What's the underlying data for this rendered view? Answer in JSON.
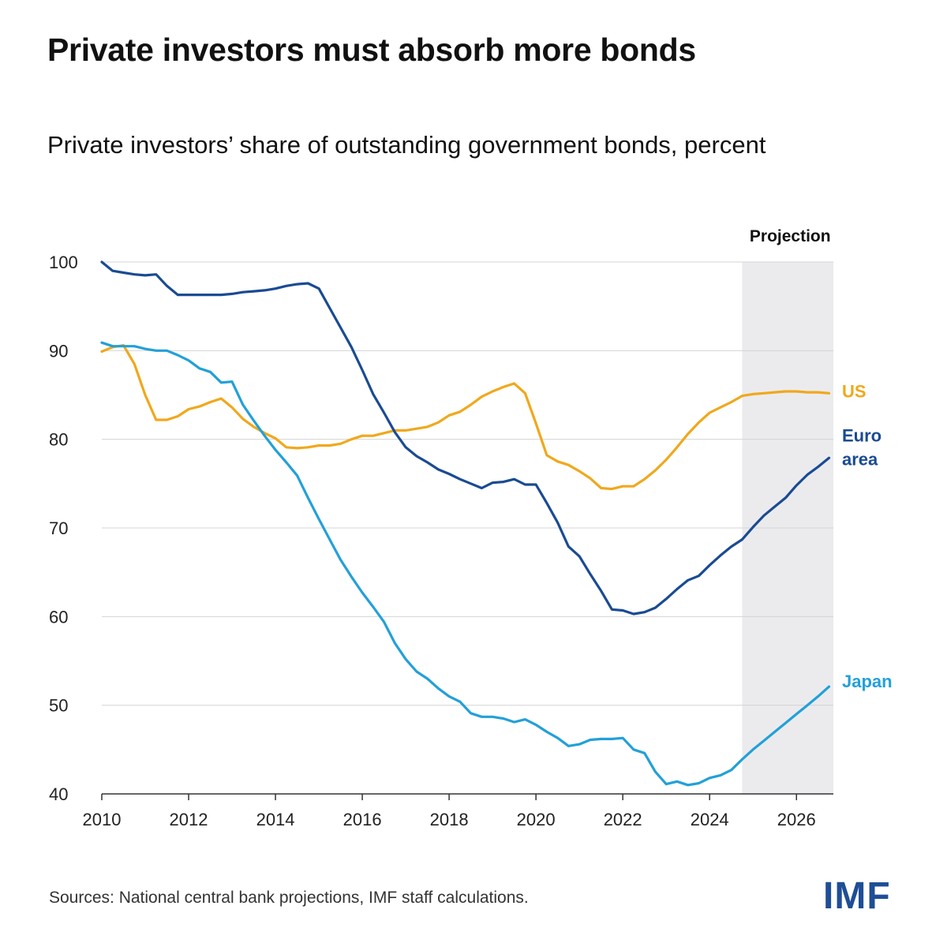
{
  "chart_data": {
    "type": "line",
    "title": "Private investors must absorb more bonds",
    "subtitle": "Private investors’ share of outstanding government bonds, percent",
    "xlabel": "",
    "ylabel": "",
    "xlim": [
      2010,
      2026.85
    ],
    "ylim": [
      40,
      100
    ],
    "y_ticks": [
      40,
      50,
      60,
      70,
      80,
      90,
      100
    ],
    "x_ticks": [
      2010,
      2012,
      2014,
      2016,
      2018,
      2020,
      2022,
      2024,
      2026
    ],
    "grid": "horizontal",
    "projection": {
      "label": "Projection",
      "start": 2024.75,
      "end": 2026.85
    },
    "series": [
      {
        "name": "US",
        "label_lines": [
          "US"
        ],
        "color": "#f0a81c",
        "points": [
          [
            2010.0,
            89.9
          ],
          [
            2010.25,
            90.4
          ],
          [
            2010.5,
            90.6
          ],
          [
            2010.75,
            88.5
          ],
          [
            2011.0,
            85.0
          ],
          [
            2011.25,
            82.2
          ],
          [
            2011.5,
            82.2
          ],
          [
            2011.75,
            82.6
          ],
          [
            2012.0,
            83.4
          ],
          [
            2012.25,
            83.7
          ],
          [
            2012.5,
            84.2
          ],
          [
            2012.75,
            84.6
          ],
          [
            2013.0,
            83.6
          ],
          [
            2013.25,
            82.3
          ],
          [
            2013.5,
            81.4
          ],
          [
            2013.75,
            80.7
          ],
          [
            2014.0,
            80.1
          ],
          [
            2014.25,
            79.1
          ],
          [
            2014.5,
            79.0
          ],
          [
            2014.75,
            79.1
          ],
          [
            2015.0,
            79.3
          ],
          [
            2015.25,
            79.3
          ],
          [
            2015.5,
            79.5
          ],
          [
            2015.75,
            80.0
          ],
          [
            2016.0,
            80.4
          ],
          [
            2016.25,
            80.4
          ],
          [
            2016.5,
            80.7
          ],
          [
            2016.75,
            81.0
          ],
          [
            2017.0,
            81.0
          ],
          [
            2017.25,
            81.2
          ],
          [
            2017.5,
            81.4
          ],
          [
            2017.75,
            81.9
          ],
          [
            2018.0,
            82.7
          ],
          [
            2018.25,
            83.1
          ],
          [
            2018.5,
            83.9
          ],
          [
            2018.75,
            84.8
          ],
          [
            2019.0,
            85.4
          ],
          [
            2019.25,
            85.9
          ],
          [
            2019.5,
            86.3
          ],
          [
            2019.75,
            85.2
          ],
          [
            2020.0,
            81.8
          ],
          [
            2020.25,
            78.2
          ],
          [
            2020.5,
            77.5
          ],
          [
            2020.75,
            77.1
          ],
          [
            2021.0,
            76.4
          ],
          [
            2021.25,
            75.6
          ],
          [
            2021.5,
            74.5
          ],
          [
            2021.75,
            74.4
          ],
          [
            2022.0,
            74.7
          ],
          [
            2022.25,
            74.7
          ],
          [
            2022.5,
            75.5
          ],
          [
            2022.75,
            76.5
          ],
          [
            2023.0,
            77.7
          ],
          [
            2023.25,
            79.1
          ],
          [
            2023.5,
            80.6
          ],
          [
            2023.75,
            81.9
          ],
          [
            2024.0,
            83.0
          ],
          [
            2024.25,
            83.6
          ],
          [
            2024.5,
            84.2
          ],
          [
            2024.75,
            84.9
          ],
          [
            2025.0,
            85.1
          ],
          [
            2025.25,
            85.2
          ],
          [
            2025.5,
            85.3
          ],
          [
            2025.75,
            85.4
          ],
          [
            2026.0,
            85.4
          ],
          [
            2026.25,
            85.3
          ],
          [
            2026.5,
            85.3
          ],
          [
            2026.75,
            85.2
          ]
        ]
      },
      {
        "name": "Euro area",
        "label_lines": [
          "Euro",
          "area"
        ],
        "color": "#1a4b93",
        "points": [
          [
            2010.0,
            100.0
          ],
          [
            2010.25,
            99.0
          ],
          [
            2010.5,
            98.8
          ],
          [
            2010.75,
            98.6
          ],
          [
            2011.0,
            98.5
          ],
          [
            2011.25,
            98.6
          ],
          [
            2011.5,
            97.3
          ],
          [
            2011.75,
            96.3
          ],
          [
            2012.0,
            96.3
          ],
          [
            2012.25,
            96.3
          ],
          [
            2012.5,
            96.3
          ],
          [
            2012.75,
            96.3
          ],
          [
            2013.0,
            96.4
          ],
          [
            2013.25,
            96.6
          ],
          [
            2013.5,
            96.7
          ],
          [
            2013.75,
            96.8
          ],
          [
            2014.0,
            97.0
          ],
          [
            2014.25,
            97.3
          ],
          [
            2014.5,
            97.5
          ],
          [
            2014.75,
            97.6
          ],
          [
            2015.0,
            97.0
          ],
          [
            2015.25,
            94.8
          ],
          [
            2015.5,
            92.6
          ],
          [
            2015.75,
            90.4
          ],
          [
            2016.0,
            87.8
          ],
          [
            2016.25,
            85.1
          ],
          [
            2016.5,
            83.0
          ],
          [
            2016.75,
            80.8
          ],
          [
            2017.0,
            79.1
          ],
          [
            2017.25,
            78.1
          ],
          [
            2017.5,
            77.4
          ],
          [
            2017.75,
            76.6
          ],
          [
            2018.0,
            76.1
          ],
          [
            2018.25,
            75.5
          ],
          [
            2018.5,
            75.0
          ],
          [
            2018.75,
            74.5
          ],
          [
            2019.0,
            75.1
          ],
          [
            2019.25,
            75.2
          ],
          [
            2019.5,
            75.5
          ],
          [
            2019.75,
            74.9
          ],
          [
            2020.0,
            74.9
          ],
          [
            2020.25,
            72.8
          ],
          [
            2020.5,
            70.6
          ],
          [
            2020.75,
            67.9
          ],
          [
            2021.0,
            66.8
          ],
          [
            2021.25,
            64.8
          ],
          [
            2021.5,
            62.9
          ],
          [
            2021.75,
            60.8
          ],
          [
            2022.0,
            60.7
          ],
          [
            2022.25,
            60.3
          ],
          [
            2022.5,
            60.5
          ],
          [
            2022.75,
            61.0
          ],
          [
            2023.0,
            62.0
          ],
          [
            2023.25,
            63.1
          ],
          [
            2023.5,
            64.1
          ],
          [
            2023.75,
            64.6
          ],
          [
            2024.0,
            65.8
          ],
          [
            2024.25,
            66.9
          ],
          [
            2024.5,
            67.9
          ],
          [
            2024.75,
            68.7
          ],
          [
            2025.0,
            70.1
          ],
          [
            2025.25,
            71.4
          ],
          [
            2025.5,
            72.4
          ],
          [
            2025.75,
            73.4
          ],
          [
            2026.0,
            74.8
          ],
          [
            2026.25,
            76.0
          ],
          [
            2026.5,
            76.9
          ],
          [
            2026.75,
            77.9
          ]
        ]
      },
      {
        "name": "Japan",
        "label_lines": [
          "Japan"
        ],
        "color": "#23a0d8",
        "points": [
          [
            2010.0,
            90.9
          ],
          [
            2010.25,
            90.5
          ],
          [
            2010.5,
            90.5
          ],
          [
            2010.75,
            90.5
          ],
          [
            2011.0,
            90.2
          ],
          [
            2011.25,
            90.0
          ],
          [
            2011.5,
            90.0
          ],
          [
            2011.75,
            89.5
          ],
          [
            2012.0,
            88.9
          ],
          [
            2012.25,
            88.0
          ],
          [
            2012.5,
            87.6
          ],
          [
            2012.75,
            86.4
          ],
          [
            2013.0,
            86.5
          ],
          [
            2013.25,
            83.9
          ],
          [
            2013.5,
            82.1
          ],
          [
            2013.75,
            80.4
          ],
          [
            2014.0,
            78.8
          ],
          [
            2014.25,
            77.4
          ],
          [
            2014.5,
            75.9
          ],
          [
            2014.75,
            73.4
          ],
          [
            2015.0,
            71.0
          ],
          [
            2015.25,
            68.7
          ],
          [
            2015.5,
            66.4
          ],
          [
            2015.75,
            64.5
          ],
          [
            2016.0,
            62.7
          ],
          [
            2016.25,
            61.1
          ],
          [
            2016.5,
            59.4
          ],
          [
            2016.75,
            57.0
          ],
          [
            2017.0,
            55.2
          ],
          [
            2017.25,
            53.8
          ],
          [
            2017.5,
            53.0
          ],
          [
            2017.75,
            51.9
          ],
          [
            2018.0,
            51.0
          ],
          [
            2018.25,
            50.4
          ],
          [
            2018.5,
            49.1
          ],
          [
            2018.75,
            48.7
          ],
          [
            2019.0,
            48.7
          ],
          [
            2019.25,
            48.5
          ],
          [
            2019.5,
            48.1
          ],
          [
            2019.75,
            48.4
          ],
          [
            2020.0,
            47.8
          ],
          [
            2020.25,
            47.0
          ],
          [
            2020.5,
            46.3
          ],
          [
            2020.75,
            45.4
          ],
          [
            2021.0,
            45.6
          ],
          [
            2021.25,
            46.1
          ],
          [
            2021.5,
            46.2
          ],
          [
            2021.75,
            46.2
          ],
          [
            2022.0,
            46.3
          ],
          [
            2022.25,
            45.0
          ],
          [
            2022.5,
            44.6
          ],
          [
            2022.75,
            42.5
          ],
          [
            2023.0,
            41.1
          ],
          [
            2023.25,
            41.4
          ],
          [
            2023.5,
            41.0
          ],
          [
            2023.75,
            41.2
          ],
          [
            2024.0,
            41.8
          ],
          [
            2024.25,
            42.1
          ],
          [
            2024.5,
            42.7
          ],
          [
            2024.75,
            43.9
          ],
          [
            2025.0,
            45.0
          ],
          [
            2025.25,
            46.0
          ],
          [
            2025.5,
            47.0
          ],
          [
            2025.75,
            48.0
          ],
          [
            2026.0,
            49.0
          ],
          [
            2026.25,
            50.0
          ],
          [
            2026.5,
            51.0
          ],
          [
            2026.75,
            52.1
          ]
        ]
      }
    ]
  },
  "source": "Sources: National central bank projections, IMF staff calculations.",
  "logo_text": "IMF"
}
